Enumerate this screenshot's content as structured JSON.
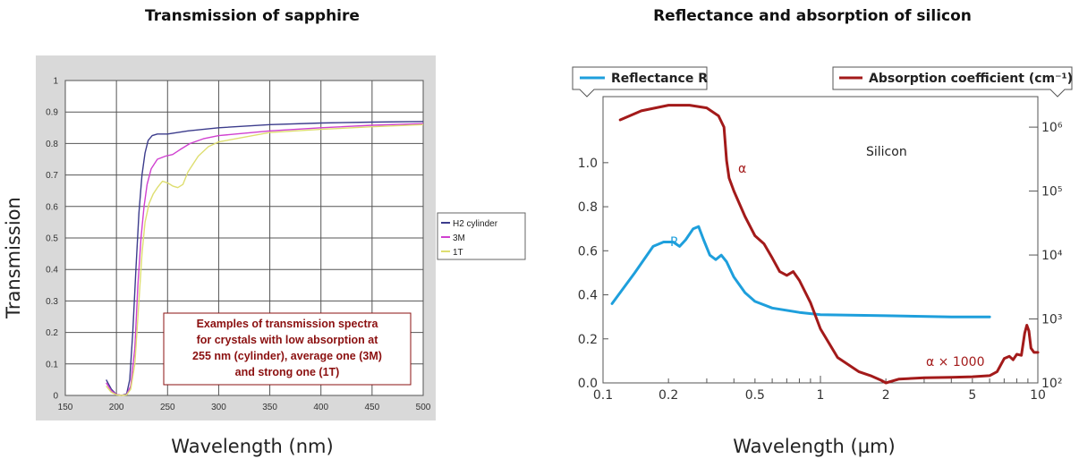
{
  "chart_data": [
    {
      "type": "line",
      "title": "Transmission of sapphire",
      "xlabel": "Wavelength (nm)",
      "ylabel": "Transmission",
      "xlim": [
        150,
        500
      ],
      "ylim": [
        0,
        1
      ],
      "grid": true,
      "legend_position": "right",
      "x_ticks": [
        "150",
        "200",
        "250",
        "300",
        "350",
        "400",
        "450",
        "500"
      ],
      "y_ticks": [
        "0",
        "0.1",
        "0.2",
        "0.3",
        "0.4",
        "0.5",
        "0.6",
        "0.7",
        "0.8",
        "0.9",
        "1"
      ],
      "annotation_lines": [
        "Examples of transmission spectra",
        "for crystals with low absorption at",
        "255 nm (cylinder), average one (3M)",
        "and strong one (1T)"
      ],
      "series": [
        {
          "name": "H2 cylinder",
          "color": "#3c3c8c",
          "points": [
            [
              190,
              0.05
            ],
            [
              195,
              0.02
            ],
            [
              200,
              0.003
            ],
            [
              205,
              0.0
            ],
            [
              210,
              0.005
            ],
            [
              213,
              0.05
            ],
            [
              216,
              0.2
            ],
            [
              219,
              0.4
            ],
            [
              222,
              0.58
            ],
            [
              225,
              0.7
            ],
            [
              228,
              0.77
            ],
            [
              231,
              0.81
            ],
            [
              235,
              0.825
            ],
            [
              240,
              0.83
            ],
            [
              250,
              0.83
            ],
            [
              270,
              0.84
            ],
            [
              300,
              0.85
            ],
            [
              350,
              0.86
            ],
            [
              400,
              0.865
            ],
            [
              450,
              0.868
            ],
            [
              500,
              0.87
            ]
          ]
        },
        {
          "name": "3M",
          "color": "#d040d0",
          "points": [
            [
              190,
              0.04
            ],
            [
              195,
              0.015
            ],
            [
              200,
              0.003
            ],
            [
              205,
              0.0
            ],
            [
              210,
              0.003
            ],
            [
              214,
              0.03
            ],
            [
              218,
              0.15
            ],
            [
              221,
              0.35
            ],
            [
              224,
              0.5
            ],
            [
              227,
              0.6
            ],
            [
              230,
              0.67
            ],
            [
              234,
              0.72
            ],
            [
              240,
              0.75
            ],
            [
              248,
              0.76
            ],
            [
              255,
              0.765
            ],
            [
              262,
              0.78
            ],
            [
              272,
              0.8
            ],
            [
              285,
              0.815
            ],
            [
              300,
              0.825
            ],
            [
              350,
              0.84
            ],
            [
              400,
              0.85
            ],
            [
              450,
              0.858
            ],
            [
              500,
              0.863
            ]
          ]
        },
        {
          "name": "1T",
          "color": "#dede70",
          "points": [
            [
              190,
              0.03
            ],
            [
              195,
              0.01
            ],
            [
              200,
              0.002
            ],
            [
              205,
              0.0
            ],
            [
              210,
              0.002
            ],
            [
              214,
              0.02
            ],
            [
              218,
              0.1
            ],
            [
              222,
              0.3
            ],
            [
              225,
              0.45
            ],
            [
              228,
              0.55
            ],
            [
              232,
              0.61
            ],
            [
              236,
              0.64
            ],
            [
              240,
              0.66
            ],
            [
              245,
              0.68
            ],
            [
              250,
              0.675
            ],
            [
              255,
              0.665
            ],
            [
              260,
              0.66
            ],
            [
              265,
              0.67
            ],
            [
              270,
              0.71
            ],
            [
              280,
              0.76
            ],
            [
              290,
              0.79
            ],
            [
              300,
              0.805
            ],
            [
              350,
              0.835
            ],
            [
              400,
              0.845
            ],
            [
              450,
              0.853
            ],
            [
              500,
              0.86
            ]
          ]
        }
      ]
    },
    {
      "type": "line",
      "title": "Reflectance and absorption of silicon",
      "xlabel": "Wavelength (µm)",
      "x_scale": "log",
      "xlim": [
        0.1,
        10
      ],
      "x_ticks": [
        "0.1",
        "0.2",
        "0.5",
        "1",
        "2",
        "5",
        "10"
      ],
      "y_left_ticks": [
        "0.0",
        "0.2",
        "0.4",
        "0.6",
        "0.8",
        "1.0"
      ],
      "y_left_lim": [
        0,
        1.3
      ],
      "y_right_scale": "log",
      "y_right_ticks": [
        "10²",
        "10³",
        "10⁴",
        "10⁵",
        "10⁶"
      ],
      "y_right_lim": [
        100,
        3000000
      ],
      "legend_left": "Reflectance R",
      "legend_right": "Absorption coefficient (cm⁻¹)",
      "sample_label": "Silicon",
      "label_R": "R",
      "label_alpha": "α",
      "label_alpha_1000": "α × 1000",
      "series": [
        {
          "name": "Reflectance R",
          "axis": "left",
          "color": "#1e9fdc",
          "points": [
            [
              0.11,
              0.36
            ],
            [
              0.14,
              0.5
            ],
            [
              0.17,
              0.62
            ],
            [
              0.19,
              0.64
            ],
            [
              0.21,
              0.64
            ],
            [
              0.225,
              0.62
            ],
            [
              0.24,
              0.65
            ],
            [
              0.26,
              0.7
            ],
            [
              0.275,
              0.71
            ],
            [
              0.29,
              0.65
            ],
            [
              0.31,
              0.58
            ],
            [
              0.33,
              0.56
            ],
            [
              0.35,
              0.58
            ],
            [
              0.37,
              0.55
            ],
            [
              0.4,
              0.48
            ],
            [
              0.45,
              0.41
            ],
            [
              0.5,
              0.37
            ],
            [
              0.6,
              0.34
            ],
            [
              0.8,
              0.32
            ],
            [
              1.0,
              0.31
            ],
            [
              2.0,
              0.305
            ],
            [
              4.0,
              0.3
            ],
            [
              6.0,
              0.3
            ]
          ]
        },
        {
          "name": "Absorption coefficient (cm⁻¹)",
          "axis": "right",
          "color": "#a31a1a",
          "points": [
            [
              0.12,
              1300000
            ],
            [
              0.15,
              1800000
            ],
            [
              0.2,
              2200000
            ],
            [
              0.25,
              2200000
            ],
            [
              0.3,
              2000000
            ],
            [
              0.34,
              1500000
            ],
            [
              0.36,
              1000000
            ],
            [
              0.37,
              300000
            ],
            [
              0.38,
              160000
            ],
            [
              0.4,
              100000
            ],
            [
              0.45,
              40000
            ],
            [
              0.5,
              20000
            ],
            [
              0.55,
              15000
            ],
            [
              0.6,
              9000
            ],
            [
              0.65,
              5500
            ],
            [
              0.7,
              4800
            ],
            [
              0.75,
              5500
            ],
            [
              0.8,
              4000
            ],
            [
              0.9,
              1800
            ],
            [
              1.0,
              700
            ],
            [
              1.2,
              250
            ],
            [
              1.5,
              150
            ],
            [
              1.7,
              130
            ],
            [
              1.9,
              110
            ],
            [
              2.0,
              100
            ],
            [
              2.3,
              115
            ],
            [
              3.0,
              120
            ],
            [
              4.0,
              122
            ],
            [
              5.0,
              125
            ],
            [
              6.0,
              130
            ],
            [
              6.5,
              150
            ],
            [
              7.0,
              240
            ],
            [
              7.4,
              260
            ],
            [
              7.7,
              230
            ],
            [
              8.0,
              280
            ],
            [
              8.4,
              270
            ],
            [
              8.7,
              600
            ],
            [
              8.9,
              800
            ],
            [
              9.1,
              650
            ],
            [
              9.3,
              350
            ],
            [
              9.6,
              300
            ],
            [
              10.0,
              300
            ]
          ]
        }
      ]
    }
  ]
}
